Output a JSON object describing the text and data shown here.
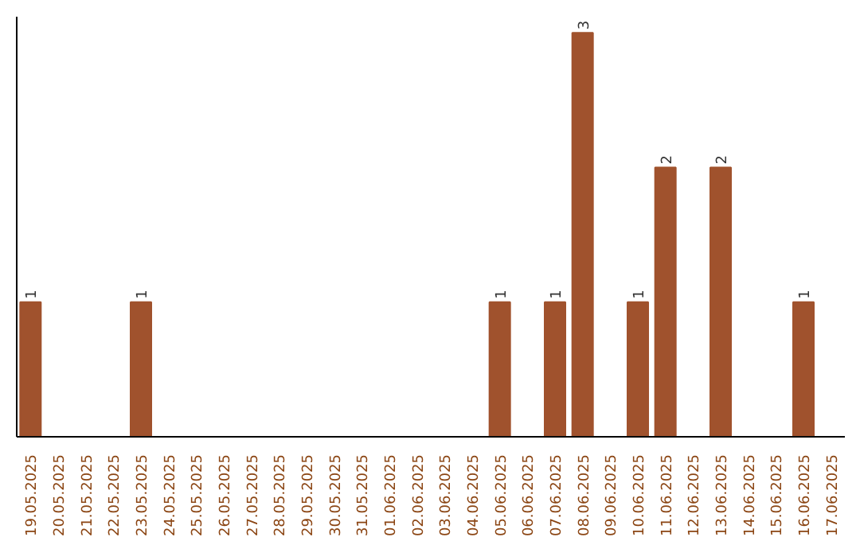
{
  "chart_data": {
    "type": "bar",
    "categories": [
      "19.05.2025",
      "20.05.2025",
      "21.05.2025",
      "22.05.2025",
      "23.05.2025",
      "24.05.2025",
      "25.05.2025",
      "26.05.2025",
      "27.05.2025",
      "28.05.2025",
      "29.05.2025",
      "30.05.2025",
      "31.05.2025",
      "01.06.2025",
      "02.06.2025",
      "03.06.2025",
      "04.06.2025",
      "05.06.2025",
      "06.06.2025",
      "07.06.2025",
      "08.06.2025",
      "09.06.2025",
      "10.06.2025",
      "11.06.2025",
      "12.06.2025",
      "13.06.2025",
      "14.06.2025",
      "15.06.2025",
      "16.06.2025",
      "17.06.2025"
    ],
    "values": [
      1,
      0,
      0,
      0,
      1,
      0,
      0,
      0,
      0,
      0,
      0,
      0,
      0,
      0,
      0,
      0,
      0,
      1,
      0,
      1,
      3,
      0,
      1,
      2,
      0,
      2,
      0,
      0,
      1,
      0
    ],
    "value_labels": [
      "1",
      null,
      null,
      null,
      "1",
      null,
      null,
      null,
      null,
      null,
      null,
      null,
      null,
      null,
      null,
      null,
      null,
      "1",
      null,
      "1",
      "3",
      null,
      "1",
      "2",
      null,
      "2",
      null,
      null,
      "1",
      null
    ],
    "color": "#a0522d",
    "grid": false,
    "tick_labels": "x"
  }
}
